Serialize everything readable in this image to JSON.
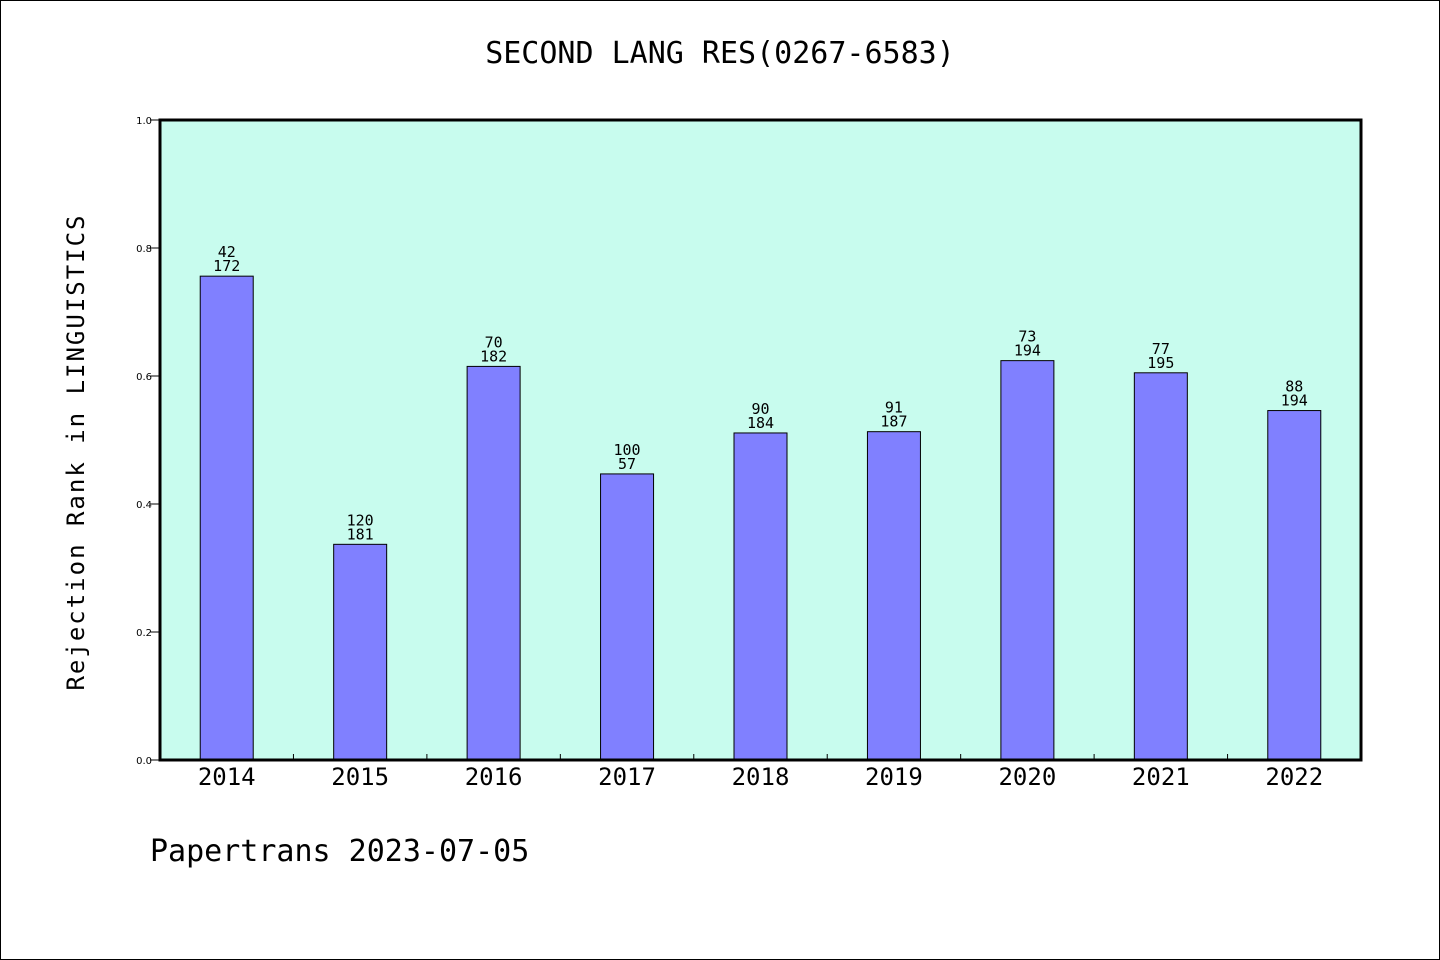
{
  "page": {
    "title": "SECOND LANG RES(0267-6583)",
    "ylabel": "Rejection Rank in LINGUISTICS",
    "footer": "Papertrans 2023-07-05"
  },
  "colors": {
    "plot_background": "#c8fcee",
    "bar_fill": "#8080ff",
    "bar_stroke": "#000000",
    "axis": "#000000"
  },
  "chart_data": {
    "type": "bar",
    "title": "SECOND LANG RES(0267-6583)",
    "xlabel": "",
    "ylabel": "Rejection Rank in LINGUISTICS",
    "ylim": [
      0,
      1.0
    ],
    "yticks": [
      0.0,
      0.2,
      0.4,
      0.6,
      0.8,
      1.0
    ],
    "ytick_labels": [
      "0.0",
      "0.2",
      "0.4",
      "0.6",
      "0.8",
      "1.0"
    ],
    "grid": false,
    "categories": [
      "2014",
      "2015",
      "2016",
      "2017",
      "2018",
      "2019",
      "2020",
      "2021",
      "2022"
    ],
    "values": [
      0.756,
      0.337,
      0.615,
      0.447,
      0.511,
      0.513,
      0.624,
      0.605,
      0.546
    ],
    "label_top": [
      "42",
      "120",
      "70",
      "100",
      "90",
      "91",
      "73",
      "77",
      "88"
    ],
    "label_bottom": [
      "172",
      "181",
      "182",
      "57",
      "184",
      "187",
      "194",
      "195",
      "194"
    ]
  }
}
